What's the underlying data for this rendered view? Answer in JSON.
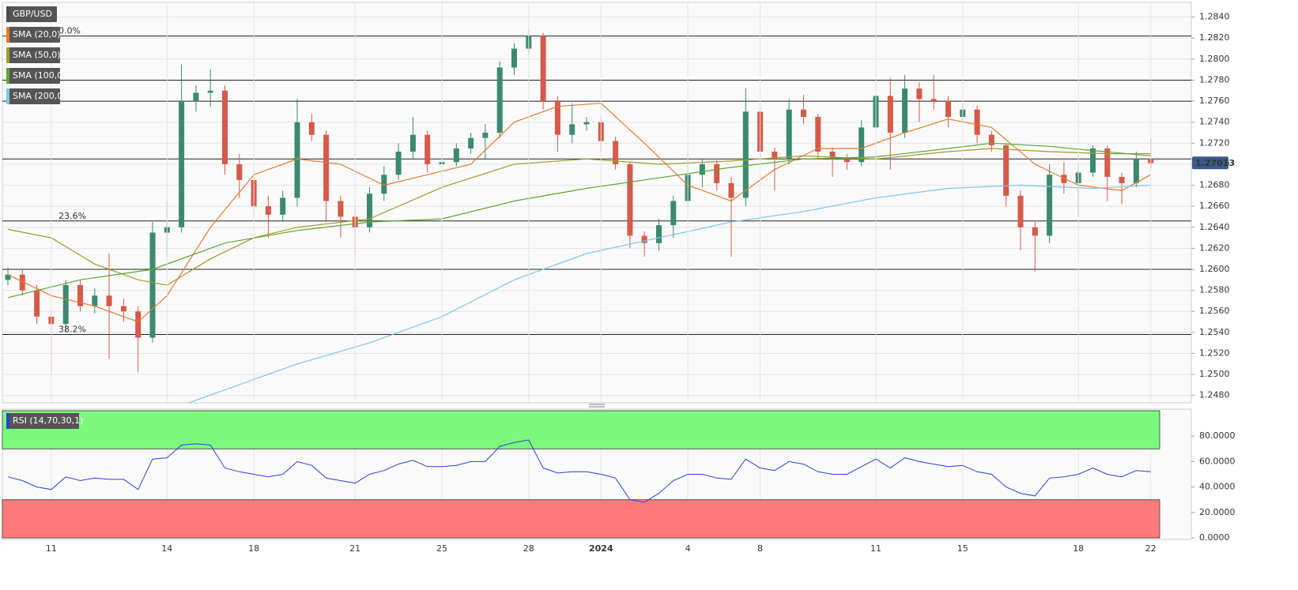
{
  "chart_data": [
    {
      "type": "candlestick",
      "title": "GBP/USD",
      "categories": [
        null,
        null,
        null,
        "11",
        null,
        null,
        null,
        null,
        null,
        null,
        null,
        "14",
        null,
        null,
        null,
        null,
        null,
        "18",
        null,
        null,
        null,
        null,
        null,
        null,
        "21",
        null,
        null,
        null,
        null,
        null,
        "25",
        null,
        null,
        null,
        null,
        null,
        "28",
        null,
        null,
        null,
        null,
        "2024",
        null,
        null,
        null,
        null,
        null,
        "4",
        null,
        null,
        null,
        null,
        "8",
        null,
        null,
        null,
        null,
        null,
        null,
        null,
        "11",
        null,
        null,
        null,
        null,
        null,
        "15",
        null,
        null,
        null,
        null,
        null,
        null,
        null,
        "18",
        null,
        null,
        null,
        null,
        "22"
      ],
      "open": [
        1.259,
        1.2595,
        1.258,
        1.2555,
        1.2548,
        1.2585,
        1.2565,
        1.2575,
        1.2565,
        1.256,
        1.2535,
        1.2635,
        1.264,
        1.276,
        1.2768,
        1.277,
        1.27,
        1.2685,
        1.266,
        1.2652,
        1.2668,
        1.274,
        1.2728,
        1.2665,
        1.265,
        1.264,
        1.2672,
        1.269,
        1.2712,
        1.2728,
        1.27,
        1.2702,
        1.2715,
        1.2725,
        1.273,
        1.2792,
        1.281,
        1.2822,
        1.276,
        1.2728,
        1.2738,
        1.274,
        1.2722,
        1.27,
        1.2632,
        1.2625,
        1.2642,
        1.2665,
        1.269,
        1.27,
        1.2682,
        1.2668,
        1.275,
        1.2712,
        1.2705,
        1.2752,
        1.2745,
        1.2712,
        1.2705,
        1.2702,
        1.2735,
        1.2765,
        1.273,
        1.2772,
        1.2762,
        1.276,
        1.2745,
        1.2752,
        1.2728,
        1.2718,
        1.267,
        1.264,
        1.2632,
        1.269,
        1.2682,
        1.2692,
        1.2715,
        1.2688,
        1.2682,
        1.2705
      ],
      "high": [
        1.2602,
        1.26,
        1.2585,
        1.256,
        1.259,
        1.259,
        1.2582,
        1.2615,
        1.2572,
        1.2565,
        1.2645,
        1.2665,
        1.2795,
        1.2775,
        1.279,
        1.2775,
        1.271,
        1.2695,
        1.267,
        1.2675,
        1.2762,
        1.2748,
        1.2732,
        1.267,
        1.266,
        1.2678,
        1.2698,
        1.272,
        1.2745,
        1.2732,
        1.271,
        1.272,
        1.273,
        1.2738,
        1.2798,
        1.2815,
        1.2828,
        1.2825,
        1.2765,
        1.2758,
        1.2745,
        1.2745,
        1.2726,
        1.2702,
        1.2636,
        1.2648,
        1.267,
        1.2712,
        1.2705,
        1.2704,
        1.2688,
        1.2772,
        1.2754,
        1.2716,
        1.2762,
        1.2766,
        1.2748,
        1.2716,
        1.271,
        1.2742,
        1.2775,
        1.2782,
        1.2785,
        1.2778,
        1.2785,
        1.2765,
        1.2758,
        1.2756,
        1.2732,
        1.272,
        1.2675,
        1.2645,
        1.27,
        1.2702,
        1.27,
        1.2718,
        1.2718,
        1.2692,
        1.2712,
        1.2725
      ],
      "low": [
        1.2585,
        1.2575,
        1.2548,
        1.2502,
        1.254,
        1.256,
        1.2558,
        1.2515,
        1.255,
        1.2502,
        1.253,
        1.2612,
        1.2635,
        1.275,
        1.2755,
        1.269,
        1.2668,
        1.2652,
        1.263,
        1.2645,
        1.266,
        1.2722,
        1.2645,
        1.263,
        1.2612,
        1.2635,
        1.2665,
        1.2685,
        1.2705,
        1.2692,
        1.2695,
        1.2698,
        1.271,
        1.2705,
        1.2725,
        1.2785,
        1.2805,
        1.2752,
        1.2712,
        1.272,
        1.2732,
        1.2712,
        1.2695,
        1.262,
        1.2612,
        1.2618,
        1.263,
        1.266,
        1.2678,
        1.2675,
        1.2612,
        1.266,
        1.2705,
        1.2675,
        1.27,
        1.2738,
        1.2705,
        1.2688,
        1.2695,
        1.2698,
        1.2728,
        1.2695,
        1.2725,
        1.274,
        1.2752,
        1.2735,
        1.274,
        1.272,
        1.2712,
        1.266,
        1.2618,
        1.2598,
        1.2625,
        1.2672,
        1.265,
        1.2688,
        1.2665,
        1.2662,
        1.2678,
        1.2696
      ],
      "close": [
        1.2595,
        1.258,
        1.2555,
        1.2548,
        1.2585,
        1.2565,
        1.2575,
        1.2565,
        1.256,
        1.2535,
        1.2635,
        1.264,
        1.276,
        1.2768,
        1.277,
        1.27,
        1.2685,
        1.266,
        1.2652,
        1.2668,
        1.274,
        1.2728,
        1.2665,
        1.265,
        1.264,
        1.2672,
        1.269,
        1.2712,
        1.2728,
        1.27,
        1.2702,
        1.2715,
        1.2725,
        1.273,
        1.2792,
        1.281,
        1.2822,
        1.276,
        1.2728,
        1.2738,
        1.274,
        1.2722,
        1.27,
        1.2632,
        1.2625,
        1.2642,
        1.2665,
        1.269,
        1.27,
        1.2682,
        1.2668,
        1.275,
        1.2712,
        1.2705,
        1.2752,
        1.2745,
        1.2712,
        1.2705,
        1.2702,
        1.2735,
        1.2765,
        1.273,
        1.2772,
        1.2762,
        1.276,
        1.2745,
        1.2752,
        1.2728,
        1.2718,
        1.267,
        1.264,
        1.2632,
        1.269,
        1.2682,
        1.2692,
        1.2715,
        1.2688,
        1.2682,
        1.2705,
        1.2701
      ],
      "up_color": "#3b8a6e",
      "down_color": "#d65a4a",
      "ylim": [
        1.2473,
        1.2854
      ],
      "yticks": [
        {
          "value": 1.248,
          "label": "1.2480"
        },
        {
          "value": 1.25,
          "label": "1.2500"
        },
        {
          "value": 1.252,
          "label": "1.2520"
        },
        {
          "value": 1.254,
          "label": "1.2540"
        },
        {
          "value": 1.256,
          "label": "1.2560"
        },
        {
          "value": 1.258,
          "label": "1.2580"
        },
        {
          "value": 1.26,
          "label": "1.2600"
        },
        {
          "value": 1.262,
          "label": "1.2620"
        },
        {
          "value": 1.264,
          "label": "1.2640"
        },
        {
          "value": 1.266,
          "label": "1.2660"
        },
        {
          "value": 1.268,
          "label": "1.2680"
        },
        {
          "value": 1.27,
          "label": "1.2700"
        },
        {
          "value": 1.272,
          "label": "1.2720"
        },
        {
          "value": 1.274,
          "label": "1.2740"
        },
        {
          "value": 1.276,
          "label": "1.2760"
        },
        {
          "value": 1.278,
          "label": "1.2780"
        },
        {
          "value": 1.28,
          "label": "1.2800"
        },
        {
          "value": 1.282,
          "label": "1.2820"
        },
        {
          "value": 1.284,
          "label": "1.2840"
        }
      ],
      "grid": true,
      "series": [
        {
          "name": "SMA (20,0)",
          "color": "#e8792f",
          "x": [
            0,
            3,
            6,
            9,
            11,
            14,
            17,
            20,
            23,
            26,
            29,
            32,
            35,
            38,
            41,
            44,
            47,
            50,
            53,
            56,
            59,
            62,
            65,
            68,
            71,
            74,
            77,
            79
          ],
          "values": [
            1.2595,
            1.2575,
            1.2565,
            1.255,
            1.2575,
            1.264,
            1.269,
            1.2705,
            1.27,
            1.268,
            1.269,
            1.27,
            1.274,
            1.2755,
            1.2758,
            1.272,
            1.268,
            1.2665,
            1.2695,
            1.2715,
            1.2715,
            1.273,
            1.2743,
            1.2735,
            1.27,
            1.268,
            1.2675,
            1.269
          ]
        },
        {
          "name": "SMA (50,0)",
          "color": "#a39a2c",
          "x": [
            0,
            3,
            6,
            9,
            11,
            14,
            17,
            20,
            25,
            30,
            35,
            40,
            45,
            50,
            55,
            60,
            65,
            68,
            72,
            76,
            79
          ],
          "values": [
            1.2638,
            1.263,
            1.2605,
            1.259,
            1.2585,
            1.261,
            1.263,
            1.264,
            1.2648,
            1.2678,
            1.27,
            1.2705,
            1.27,
            1.2703,
            1.2708,
            1.2705,
            1.2712,
            1.2715,
            1.2712,
            1.271,
            1.271
          ]
        },
        {
          "name": "SMA (100,0)",
          "color": "#5aa832",
          "x": [
            0,
            5,
            10,
            15,
            20,
            25,
            30,
            35,
            40,
            45,
            50,
            55,
            60,
            65,
            68,
            72,
            75,
            79
          ],
          "values": [
            1.2573,
            1.259,
            1.26,
            1.2625,
            1.2637,
            1.2645,
            1.2648,
            1.2665,
            1.2677,
            1.2687,
            1.2697,
            1.2705,
            1.2707,
            1.2715,
            1.272,
            1.2717,
            1.2713,
            1.2708
          ]
        },
        {
          "name": "SMA (200,0)",
          "color": "#7ec6ee",
          "x": [
            12.5,
            20,
            25,
            30,
            35,
            40,
            45,
            50,
            55,
            60,
            65,
            70,
            75,
            79
          ],
          "values": [
            1.2473,
            1.251,
            1.253,
            1.2555,
            1.259,
            1.2615,
            1.263,
            1.2645,
            1.2655,
            1.2668,
            1.2677,
            1.268,
            1.2677,
            1.268
          ]
        }
      ],
      "fib_levels": [
        {
          "value": 1.2822,
          "label": "0.0%"
        },
        {
          "value": 1.2646,
          "label": "23.6%"
        },
        {
          "value": 1.2538,
          "label": "38.2%"
        }
      ],
      "levels": [
        1.278,
        1.276,
        1.26,
        1.2705
      ],
      "last_price": 1.27013
    },
    {
      "type": "line",
      "title": "RSI (14,70,30,1)",
      "color": "#2741d8",
      "values": [
        48,
        45,
        40,
        38,
        48,
        45,
        47,
        46,
        46,
        38,
        62,
        63,
        73,
        74,
        73,
        55,
        52,
        50,
        48,
        50,
        60,
        57,
        47,
        45,
        43,
        50,
        53,
        58,
        61,
        56,
        56,
        57,
        60,
        60,
        72,
        75,
        77,
        55,
        51,
        52,
        52,
        50,
        47,
        30,
        28,
        35,
        45,
        50,
        50,
        47,
        46,
        62,
        55,
        53,
        60,
        58,
        52,
        50,
        50,
        56,
        62,
        55,
        63,
        60,
        58,
        56,
        57,
        52,
        50,
        40,
        35,
        33,
        47,
        48,
        50,
        55,
        50,
        48,
        53,
        52
      ],
      "ylim": [
        0,
        100
      ],
      "yticks": [
        {
          "value": 0,
          "label": "0.0000"
        },
        {
          "value": 20,
          "label": "20.0000"
        },
        {
          "value": 40,
          "label": "40.0000"
        },
        {
          "value": 60,
          "label": "60.0000"
        },
        {
          "value": 80,
          "label": "80.0000"
        }
      ],
      "overbought": 70,
      "oversold": 30,
      "overbought_color": "#7cf97c",
      "oversold_color": "#ff7b7b"
    }
  ]
}
